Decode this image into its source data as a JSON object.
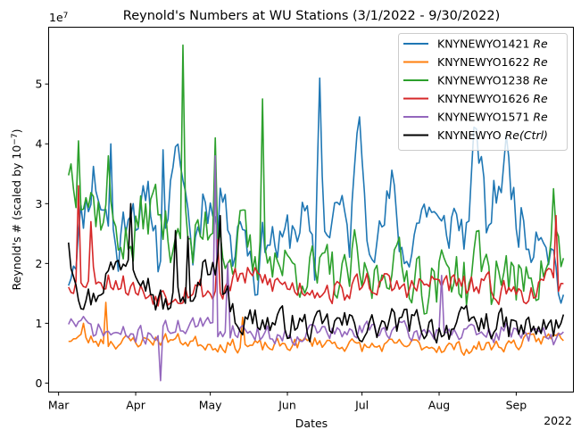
{
  "chart_data": {
    "type": "line",
    "title": "Reynold's Numbers at WU Stations (3/1/2022 - 9/30/2022)",
    "xlabel": "Dates",
    "ylabel": "Reynold's # (scaled by 10",
    "ylabel_sup": "−7",
    "ylabel_close": ")",
    "offset_label": "1e7",
    "offset_sup": "7",
    "year_label": "2022",
    "x_tick_labels": [
      "Mar",
      "Apr",
      "May",
      "Jun",
      "Jul",
      "Aug",
      "Sep"
    ],
    "y_tick_labels": [
      "0",
      "1",
      "2",
      "3",
      "4",
      "5"
    ],
    "y_ticks": [
      0,
      10000000,
      20000000,
      30000000,
      40000000,
      50000000
    ],
    "ylim": [
      -1500000,
      59500000
    ],
    "xlim_days": [
      -4,
      207
    ],
    "grid": false,
    "legend_position": "top-right",
    "n_days": 200,
    "series": [
      {
        "name": "KNYNEWYO1421",
        "name_suffix": "Re",
        "color": "#1f77b4",
        "anchors": [
          [
            0,
            18.5
          ],
          [
            4,
            25
          ],
          [
            10,
            35
          ],
          [
            15,
            28
          ],
          [
            20,
            22
          ],
          [
            25,
            32
          ],
          [
            30,
            26
          ],
          [
            33,
            30
          ],
          [
            36,
            22
          ],
          [
            40,
            30
          ],
          [
            45,
            38
          ],
          [
            50,
            22
          ],
          [
            55,
            33
          ],
          [
            60,
            26
          ],
          [
            63,
            35
          ],
          [
            66,
            22
          ],
          [
            70,
            28
          ],
          [
            75,
            18
          ],
          [
            80,
            26
          ],
          [
            85,
            22
          ],
          [
            90,
            26
          ],
          [
            95,
            28
          ],
          [
            99,
            18
          ],
          [
            101,
            51
          ],
          [
            103,
            25
          ],
          [
            108,
            30
          ],
          [
            113,
            24
          ],
          [
            117,
            44
          ],
          [
            120,
            28
          ],
          [
            125,
            24
          ],
          [
            130,
            32
          ],
          [
            135,
            20
          ],
          [
            140,
            27
          ],
          [
            145,
            30
          ],
          [
            150,
            24
          ],
          [
            155,
            28
          ],
          [
            160,
            25
          ],
          [
            164,
            43
          ],
          [
            168,
            26
          ],
          [
            172,
            32
          ],
          [
            176,
            38
          ],
          [
            180,
            29
          ],
          [
            185,
            24
          ],
          [
            190,
            28
          ],
          [
            195,
            21
          ],
          [
            199,
            14
          ]
        ],
        "amp": 6.5,
        "spikes": [
          [
            101,
            51
          ],
          [
            117,
            44.5
          ],
          [
            164,
            42.5
          ],
          [
            176,
            41.5
          ],
          [
            17,
            40
          ],
          [
            30,
            33
          ],
          [
            38,
            39
          ]
        ],
        "seed": 11
      },
      {
        "name": "KNYNEWYO1622",
        "name_suffix": "Re",
        "color": "#ff7f0e",
        "anchors": [
          [
            0,
            7.5
          ],
          [
            20,
            6.8
          ],
          [
            40,
            7.4
          ],
          [
            60,
            6.4
          ],
          [
            80,
            6.0
          ],
          [
            100,
            7.0
          ],
          [
            120,
            6.0
          ],
          [
            140,
            6.4
          ],
          [
            160,
            5.8
          ],
          [
            180,
            6.6
          ],
          [
            199,
            8
          ]
        ],
        "amp": 1.6,
        "spikes": [
          [
            15,
            13.5
          ],
          [
            70,
            11
          ],
          [
            6,
            10
          ]
        ],
        "seed": 23
      },
      {
        "name": "KNYNEWYO1238",
        "name_suffix": "Re",
        "color": "#2ca02c",
        "anchors": [
          [
            0,
            37
          ],
          [
            5,
            33
          ],
          [
            10,
            30
          ],
          [
            20,
            26
          ],
          [
            25,
            22
          ],
          [
            30,
            28
          ],
          [
            35,
            30
          ],
          [
            40,
            24
          ],
          [
            45,
            28
          ],
          [
            50,
            22
          ],
          [
            55,
            26
          ],
          [
            60,
            28
          ],
          [
            65,
            20
          ],
          [
            70,
            25
          ],
          [
            75,
            18
          ],
          [
            80,
            24
          ],
          [
            85,
            20
          ],
          [
            90,
            19
          ],
          [
            95,
            20
          ],
          [
            100,
            17
          ],
          [
            105,
            19
          ],
          [
            110,
            16
          ],
          [
            115,
            20
          ],
          [
            120,
            16
          ],
          [
            125,
            18
          ],
          [
            130,
            22
          ],
          [
            135,
            17
          ],
          [
            140,
            20
          ],
          [
            145,
            15
          ],
          [
            150,
            18
          ],
          [
            155,
            20
          ],
          [
            160,
            16
          ],
          [
            165,
            22
          ],
          [
            170,
            17
          ],
          [
            175,
            20
          ],
          [
            180,
            15
          ],
          [
            185,
            20
          ],
          [
            190,
            18
          ],
          [
            195,
            24
          ],
          [
            199,
            20
          ]
        ],
        "amp": 7,
        "spikes": [
          [
            46,
            56.5
          ],
          [
            78,
            47.5
          ],
          [
            59,
            41
          ],
          [
            4,
            40.5
          ],
          [
            16,
            38
          ],
          [
            195,
            32.5
          ]
        ],
        "seed": 37
      },
      {
        "name": "KNYNEWYO1626",
        "name_suffix": "Re",
        "color": "#d62728",
        "anchors": [
          [
            0,
            17
          ],
          [
            10,
            18
          ],
          [
            20,
            17
          ],
          [
            30,
            15
          ],
          [
            40,
            15
          ],
          [
            50,
            16
          ],
          [
            60,
            15
          ],
          [
            70,
            18
          ],
          [
            80,
            17
          ],
          [
            90,
            16
          ],
          [
            100,
            16
          ],
          [
            110,
            15
          ],
          [
            120,
            17
          ],
          [
            130,
            16
          ],
          [
            140,
            16
          ],
          [
            150,
            17
          ],
          [
            160,
            16
          ],
          [
            170,
            16
          ],
          [
            180,
            15
          ],
          [
            190,
            16
          ],
          [
            199,
            18
          ]
        ],
        "amp": 3,
        "spikes": [
          [
            4,
            33
          ],
          [
            9,
            27
          ],
          [
            196,
            28
          ],
          [
            60,
            24
          ]
        ],
        "seed": 53
      },
      {
        "name": "KNYNEWYO1571",
        "name_suffix": "Re",
        "color": "#9467bd",
        "anchors": [
          [
            0,
            10.5
          ],
          [
            10,
            9
          ],
          [
            20,
            8
          ],
          [
            30,
            8
          ],
          [
            40,
            9
          ],
          [
            50,
            10
          ],
          [
            60,
            9
          ],
          [
            70,
            9
          ],
          [
            80,
            8
          ],
          [
            90,
            8
          ],
          [
            100,
            9
          ],
          [
            110,
            8
          ],
          [
            120,
            9
          ],
          [
            130,
            9
          ],
          [
            140,
            8
          ],
          [
            150,
            9
          ],
          [
            160,
            8
          ],
          [
            170,
            8
          ],
          [
            180,
            9
          ],
          [
            190,
            8
          ],
          [
            199,
            7
          ]
        ],
        "amp": 2.2,
        "spikes": [
          [
            59,
            38
          ],
          [
            37,
            0.4
          ],
          [
            64,
            20
          ],
          [
            150,
            18
          ]
        ],
        "seed": 71
      },
      {
        "name": "KNYNEWYO",
        "name_suffix": "Re(Ctrl)",
        "color": "#000000",
        "anchors": [
          [
            0,
            23
          ],
          [
            5,
            15
          ],
          [
            10,
            14
          ],
          [
            15,
            18
          ],
          [
            20,
            20
          ],
          [
            25,
            22
          ],
          [
            30,
            19
          ],
          [
            35,
            14
          ],
          [
            40,
            13
          ],
          [
            45,
            15
          ],
          [
            50,
            12
          ],
          [
            55,
            20
          ],
          [
            60,
            20
          ],
          [
            65,
            13
          ],
          [
            70,
            10
          ],
          [
            75,
            11
          ],
          [
            80,
            10
          ],
          [
            90,
            10
          ],
          [
            100,
            9
          ],
          [
            110,
            10
          ],
          [
            120,
            9
          ],
          [
            130,
            10
          ],
          [
            140,
            10
          ],
          [
            150,
            9
          ],
          [
            160,
            10
          ],
          [
            170,
            10
          ],
          [
            180,
            9
          ],
          [
            190,
            9
          ],
          [
            199,
            9.5
          ]
        ],
        "amp": 3.5,
        "spikes": [
          [
            25,
            30
          ],
          [
            61,
            28
          ],
          [
            0,
            23.5
          ],
          [
            43,
            25.5
          ],
          [
            48,
            24.5
          ]
        ],
        "seed": 97
      }
    ]
  }
}
